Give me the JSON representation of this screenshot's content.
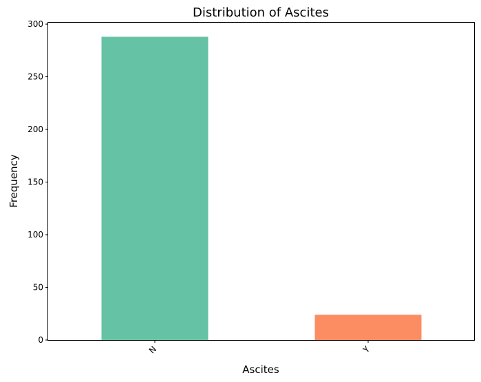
{
  "chart_data": {
    "type": "bar",
    "title": "Distribution of Ascites",
    "xlabel": "Ascites",
    "ylabel": "Frequency",
    "categories": [
      "N",
      "Y"
    ],
    "values": [
      288,
      24
    ],
    "ylim": [
      0,
      302
    ],
    "yticks": [
      0,
      50,
      100,
      150,
      200,
      250,
      300
    ],
    "bar_colors": [
      "#66c2a5",
      "#fc8d62"
    ],
    "xtick_rotation_deg": 45,
    "grid": false,
    "legend": "none"
  }
}
